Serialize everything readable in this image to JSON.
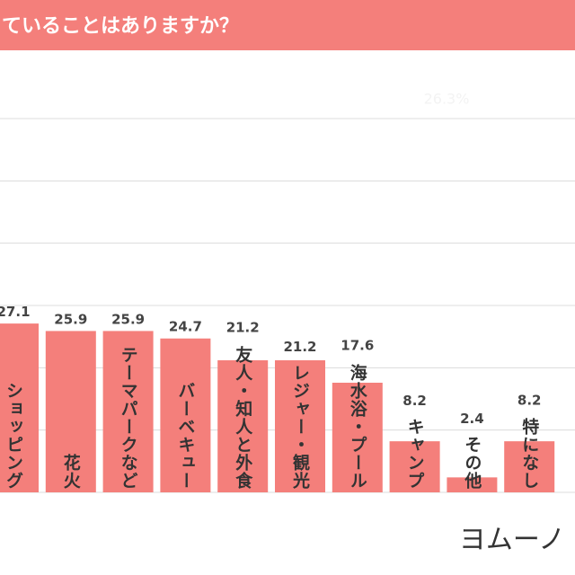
{
  "chart_data": {
    "type": "bar",
    "title": "ていることはありますか？",
    "annotation": "26.3%",
    "logo": "ヨムーノ",
    "categories": [
      "ショッピング",
      "花火",
      "テーマパークなど",
      "バーベキュー",
      "友人・知人と外食",
      "レジャー・観光",
      "海水浴・プール",
      "キャンプ",
      "その他",
      "特になし"
    ],
    "values": [
      27.1,
      25.9,
      25.9,
      24.7,
      21.2,
      21.2,
      17.6,
      8.2,
      2.4,
      8.2
    ],
    "color": "#f47f7b",
    "ylim": [
      0,
      60
    ],
    "yticks": [
      0,
      10,
      20,
      30,
      40,
      50,
      60
    ],
    "grid": true
  }
}
